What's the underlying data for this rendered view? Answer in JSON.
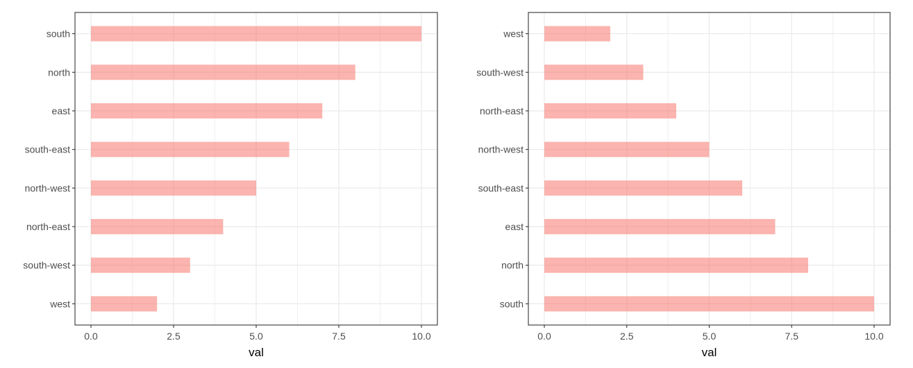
{
  "chart_data": [
    {
      "type": "bar",
      "orientation": "horizontal",
      "categories": [
        "south",
        "north",
        "east",
        "south-east",
        "north-west",
        "north-east",
        "south-west",
        "west"
      ],
      "values": [
        10,
        8,
        7,
        6,
        5,
        4,
        3,
        2
      ],
      "xlabel": "val",
      "ylabel": "",
      "xlim": [
        0,
        10
      ],
      "xticks": [
        "0.0",
        "2.5",
        "5.0",
        "7.5",
        "10.0"
      ],
      "grid": true,
      "bar_color": "#F8766D",
      "bar_opacity": 0.55
    },
    {
      "type": "bar",
      "orientation": "horizontal",
      "categories": [
        "west",
        "south-west",
        "north-east",
        "north-west",
        "south-east",
        "east",
        "north",
        "south"
      ],
      "values": [
        2,
        3,
        4,
        5,
        6,
        7,
        8,
        10
      ],
      "xlabel": "val",
      "ylabel": "",
      "xlim": [
        0,
        10
      ],
      "xticks": [
        "0.0",
        "2.5",
        "5.0",
        "7.5",
        "10.0"
      ],
      "grid": true,
      "bar_color": "#F8766D",
      "bar_opacity": 0.55
    }
  ]
}
